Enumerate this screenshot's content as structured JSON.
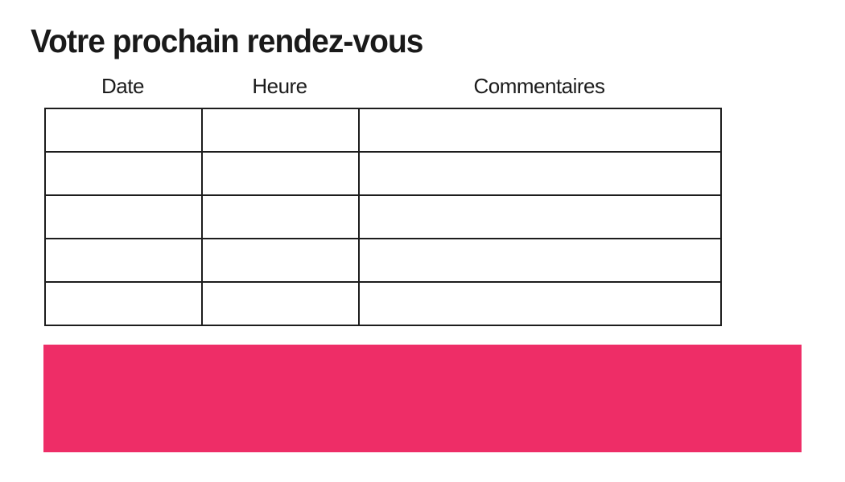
{
  "page": {
    "title": "Votre prochain rendez-vous"
  },
  "table": {
    "columns": [
      {
        "label": "Date"
      },
      {
        "label": "Heure"
      },
      {
        "label": "Commentaires"
      }
    ],
    "rows": [
      [
        "",
        "",
        ""
      ],
      [
        "",
        "",
        ""
      ],
      [
        "",
        "",
        ""
      ],
      [
        "",
        "",
        ""
      ],
      [
        "",
        "",
        ""
      ]
    ]
  },
  "colors": {
    "accent_pink": "#EE2D67",
    "text": "#1A1A1A",
    "table_border": "#1D1D1D"
  }
}
